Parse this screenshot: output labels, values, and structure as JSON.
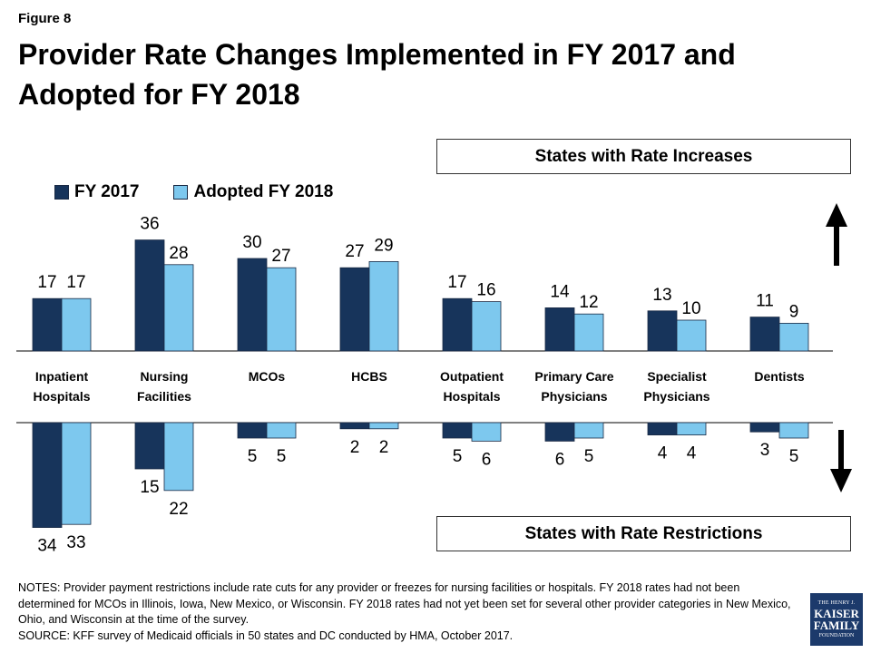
{
  "figure_label": "Figure 8",
  "title": "Provider Rate Changes Implemented in FY 2017 and Adopted for FY 2018",
  "increase_box": "States with Rate Increases",
  "restriction_box": "States with Rate Restrictions",
  "notes": "NOTES: Provider payment restrictions include rate cuts for any provider or freezes for nursing facilities or hospitals.  FY 2018 rates had not been determined for MCOs in Illinois, Iowa, New Mexico, or Wisconsin. FY 2018 rates had not yet been set for several other provider categories in New Mexico, Ohio, and Wisconsin at the time of the survey.",
  "source": "SOURCE: KFF survey of Medicaid officials in 50 states and DC conducted by HMA, October 2017.",
  "logo": {
    "line1": "THE HENRY J.",
    "line2": "KAISER",
    "line3": "FAMILY",
    "line4": "FOUNDATION"
  },
  "colors": {
    "fy2017": "#17345b",
    "fy2018": "#7dc8ee"
  },
  "chart_data": {
    "type": "bar",
    "categories": [
      [
        "Inpatient",
        "Hospitals"
      ],
      [
        "Nursing",
        "Facilities"
      ],
      [
        "MCOs"
      ],
      [
        "HCBS"
      ],
      [
        "Outpatient",
        "Hospitals"
      ],
      [
        "Primary Care",
        "Physicians"
      ],
      [
        "Specialist",
        "Physicians"
      ],
      [
        "Dentists"
      ]
    ],
    "series": [
      {
        "name": "FY 2017",
        "color": "#17345b",
        "increases": [
          17,
          36,
          30,
          27,
          17,
          14,
          13,
          11
        ],
        "restrictions": [
          34,
          15,
          5,
          2,
          5,
          6,
          4,
          3
        ]
      },
      {
        "name": "Adopted FY 2018",
        "color": "#7dc8ee",
        "increases": [
          17,
          28,
          27,
          29,
          16,
          12,
          10,
          9
        ],
        "restrictions": [
          33,
          22,
          5,
          2,
          6,
          5,
          4,
          5
        ]
      }
    ],
    "legend_position": "top-left",
    "grid": false
  }
}
